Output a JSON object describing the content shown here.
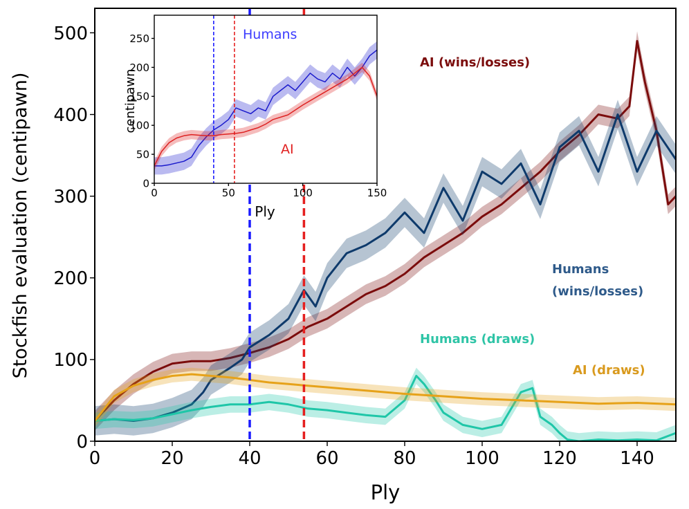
{
  "chart_data": [
    {
      "type": "line",
      "title": "",
      "xlabel": "Ply",
      "ylabel": "Stockfish evaluation (centipawn)",
      "xlim": [
        0,
        150
      ],
      "ylim": [
        0,
        530
      ],
      "xticks": [
        0,
        20,
        40,
        60,
        80,
        100,
        120,
        140
      ],
      "yticks": [
        0,
        100,
        200,
        300,
        400,
        500
      ],
      "xtick_labels": [
        "0",
        "20",
        "40",
        "60",
        "80",
        "100",
        "120",
        "140"
      ],
      "ytick_labels": [
        "0",
        "100",
        "200",
        "300",
        "400",
        "500"
      ],
      "vlines": [
        {
          "x": 40,
          "color": "#1a1aff",
          "style": "dashed"
        },
        {
          "x": 54,
          "color": "#e52020",
          "style": "dashed"
        }
      ],
      "series": [
        {
          "name": "AI (wins/losses)",
          "color": "#7b0c0c",
          "label_color": "#7b0c0c",
          "band": 12,
          "x": [
            0,
            5,
            10,
            15,
            20,
            25,
            30,
            35,
            40,
            45,
            50,
            55,
            60,
            65,
            70,
            75,
            80,
            85,
            90,
            95,
            100,
            105,
            110,
            115,
            120,
            125,
            130,
            135,
            138,
            140,
            142,
            145,
            148,
            150
          ],
          "values": [
            25,
            50,
            70,
            85,
            95,
            98,
            98,
            102,
            108,
            115,
            125,
            140,
            150,
            165,
            180,
            190,
            205,
            225,
            240,
            255,
            275,
            290,
            310,
            330,
            355,
            375,
            400,
            395,
            410,
            490,
            440,
            380,
            290,
            300
          ]
        },
        {
          "name": "Humans (wins/losses)",
          "color": "#0e3a6b",
          "label_color": "#2e5a8a",
          "band": 18,
          "x": [
            0,
            5,
            10,
            15,
            20,
            25,
            28,
            30,
            35,
            38,
            40,
            45,
            50,
            54,
            57,
            60,
            65,
            70,
            75,
            80,
            85,
            90,
            95,
            100,
            105,
            110,
            115,
            120,
            125,
            130,
            135,
            140,
            145,
            150
          ],
          "values": [
            25,
            27,
            25,
            28,
            35,
            45,
            60,
            75,
            90,
            100,
            115,
            130,
            150,
            185,
            165,
            200,
            230,
            240,
            255,
            280,
            255,
            310,
            270,
            330,
            315,
            340,
            290,
            360,
            380,
            330,
            400,
            330,
            380,
            345
          ]
        },
        {
          "name": "Humans (draws)",
          "color": "#1fc6a8",
          "label_color": "#2ec4a6",
          "band": 10,
          "x": [
            0,
            5,
            10,
            15,
            20,
            25,
            30,
            35,
            40,
            45,
            50,
            55,
            60,
            65,
            70,
            75,
            80,
            83,
            85,
            88,
            90,
            95,
            100,
            105,
            110,
            113,
            115,
            118,
            120,
            122,
            125,
            130,
            135,
            140,
            145,
            150
          ],
          "values": [
            25,
            27,
            26,
            28,
            33,
            38,
            42,
            45,
            45,
            48,
            45,
            40,
            38,
            35,
            32,
            30,
            50,
            80,
            70,
            50,
            35,
            20,
            15,
            20,
            60,
            65,
            30,
            20,
            10,
            2,
            0,
            2,
            1,
            2,
            1,
            10
          ]
        },
        {
          "name": "AI (draws)",
          "color": "#e6a21a",
          "label_color": "#d99a1e",
          "band": 8,
          "x": [
            0,
            5,
            10,
            15,
            20,
            25,
            30,
            35,
            40,
            45,
            50,
            55,
            60,
            70,
            80,
            90,
            100,
            110,
            120,
            130,
            140,
            150
          ],
          "values": [
            25,
            55,
            68,
            75,
            80,
            82,
            80,
            78,
            75,
            72,
            70,
            68,
            66,
            62,
            58,
            55,
            52,
            50,
            48,
            46,
            47,
            45
          ]
        }
      ]
    },
    {
      "type": "line",
      "title": "",
      "xlabel": "Ply",
      "ylabel": "centipawn",
      "xlim": [
        0,
        150
      ],
      "ylim": [
        0,
        290
      ],
      "xticks": [
        0,
        50,
        100,
        150
      ],
      "yticks": [
        0,
        50,
        100,
        150,
        200,
        250
      ],
      "xtick_labels": [
        "0",
        "50",
        "100",
        "150"
      ],
      "ytick_labels": [
        "0",
        "50",
        "100",
        "150",
        "200",
        "250"
      ],
      "vlines": [
        {
          "x": 40,
          "color": "#1a1aff",
          "style": "dashed"
        },
        {
          "x": 54,
          "color": "#e52020",
          "style": "dashed"
        }
      ],
      "series": [
        {
          "name": "Humans",
          "color": "#1a1acc",
          "label_color": "#3b3bff",
          "band": 15,
          "x": [
            0,
            5,
            10,
            15,
            20,
            25,
            30,
            35,
            40,
            45,
            50,
            55,
            60,
            65,
            70,
            75,
            80,
            85,
            90,
            95,
            100,
            105,
            110,
            115,
            120,
            125,
            130,
            135,
            140,
            145,
            150
          ],
          "values": [
            30,
            30,
            32,
            35,
            38,
            45,
            65,
            80,
            92,
            100,
            110,
            130,
            125,
            120,
            130,
            125,
            150,
            160,
            170,
            160,
            175,
            190,
            180,
            175,
            190,
            180,
            200,
            185,
            200,
            220,
            230
          ]
        },
        {
          "name": "AI",
          "color": "#dd2222",
          "label_color": "#e02020",
          "band": 8,
          "x": [
            0,
            5,
            10,
            15,
            20,
            25,
            30,
            35,
            40,
            45,
            50,
            55,
            60,
            65,
            70,
            75,
            80,
            90,
            100,
            110,
            120,
            130,
            140,
            145,
            150
          ],
          "values": [
            30,
            55,
            70,
            78,
            82,
            84,
            83,
            82,
            82,
            84,
            85,
            86,
            88,
            92,
            96,
            102,
            110,
            118,
            135,
            150,
            165,
            180,
            200,
            185,
            150
          ]
        }
      ]
    }
  ]
}
